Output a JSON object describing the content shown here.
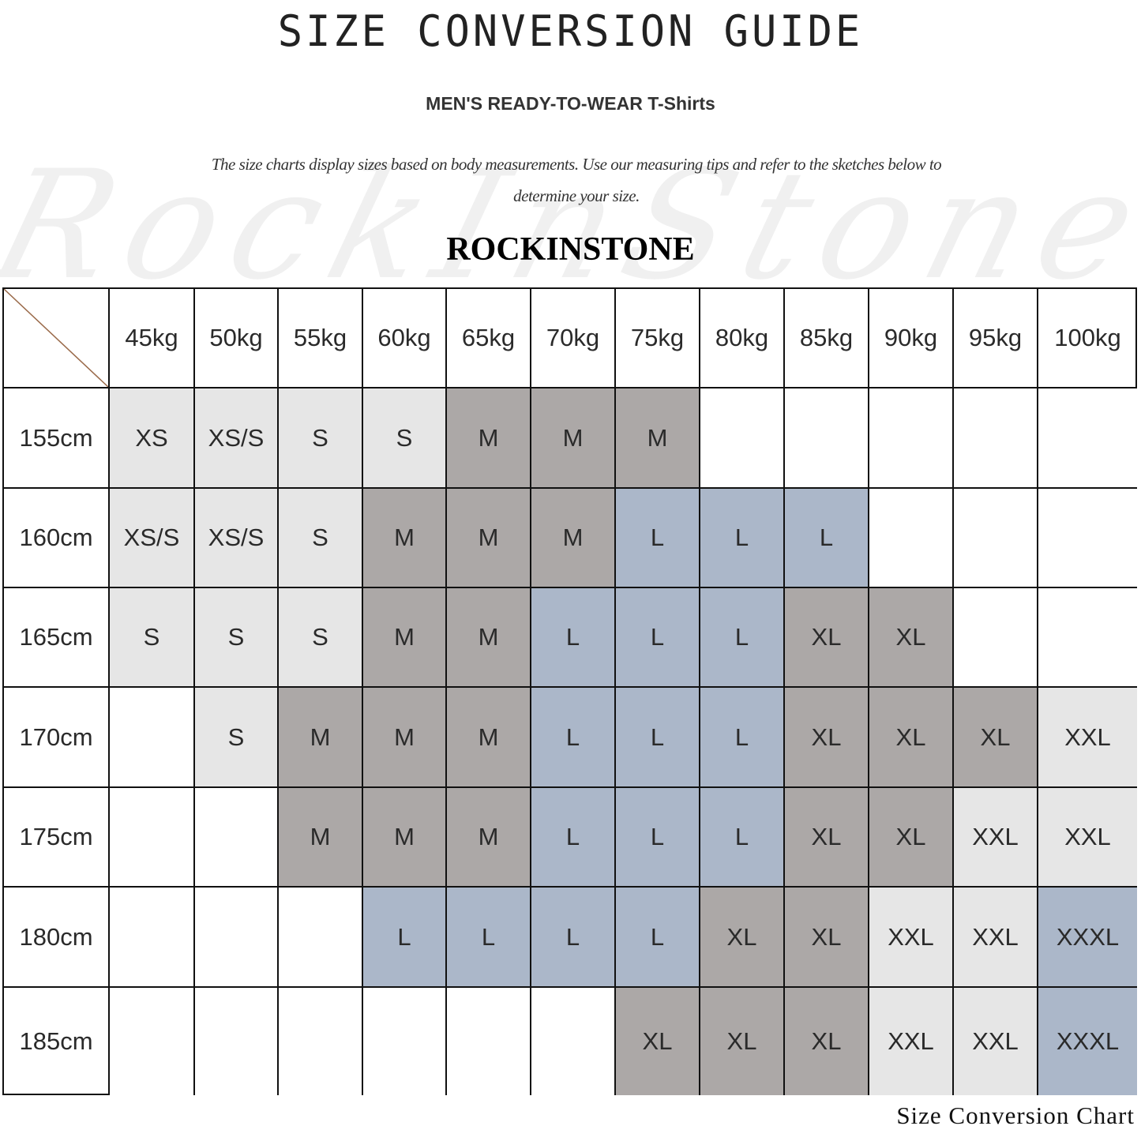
{
  "header": {
    "title": "SIZE CONVERSION GUIDE",
    "subtitle": "MEN'S READY-TO-WEAR T-Shirts",
    "description": "The size charts display sizes based on body measurements. Use our measuring tips and refer to the sketches below to determine your size.",
    "brand": "ROCKINSTONE",
    "watermark": "RockInStone"
  },
  "footer": {
    "caption": "Size Conversion Chart"
  },
  "chart_data": {
    "type": "table",
    "title": "SIZE CONVERSION GUIDE",
    "columns": [
      "45kg",
      "50kg",
      "55kg",
      "60kg",
      "65kg",
      "70kg",
      "75kg",
      "80kg",
      "85kg",
      "90kg",
      "95kg",
      "100kg"
    ],
    "rows": [
      {
        "label": "155cm",
        "values": [
          "XS",
          "XS/S",
          "S",
          "S",
          "M",
          "M",
          "M",
          "",
          "",
          "",
          "",
          ""
        ]
      },
      {
        "label": "160cm",
        "values": [
          "XS/S",
          "XS/S",
          "S",
          "M",
          "M",
          "M",
          "L",
          "L",
          "L",
          "",
          "",
          ""
        ]
      },
      {
        "label": "165cm",
        "values": [
          "S",
          "S",
          "S",
          "M",
          "M",
          "L",
          "L",
          "L",
          "XL",
          "XL",
          "",
          ""
        ]
      },
      {
        "label": "170cm",
        "values": [
          "",
          "S",
          "M",
          "M",
          "M",
          "L",
          "L",
          "L",
          "XL",
          "XL",
          "XL",
          "XXL"
        ]
      },
      {
        "label": "175cm",
        "values": [
          "",
          "",
          "M",
          "M",
          "M",
          "L",
          "L",
          "L",
          "XL",
          "XL",
          "XXL",
          "XXL"
        ]
      },
      {
        "label": "180cm",
        "values": [
          "",
          "",
          "",
          "L",
          "L",
          "L",
          "L",
          "XL",
          "XL",
          "XXL",
          "XXL",
          "XXXL"
        ]
      },
      {
        "label": "185cm",
        "values": [
          "",
          "",
          "",
          "",
          "",
          "",
          "XL",
          "XL",
          "XL",
          "XXL",
          "XXL",
          "XXXL"
        ]
      }
    ],
    "size_colors": {
      "XS": "#e6e6e6",
      "XS/S": "#e6e6e6",
      "S": "#e6e6e6",
      "M": "#aca8a7",
      "L": "#abb7c9",
      "XL": "#aca8a7",
      "XXL": "#e6e6e6",
      "XXXL": "#abb7c9",
      "": "#ffffff"
    },
    "corner_line_color": "#9a6a4a"
  }
}
